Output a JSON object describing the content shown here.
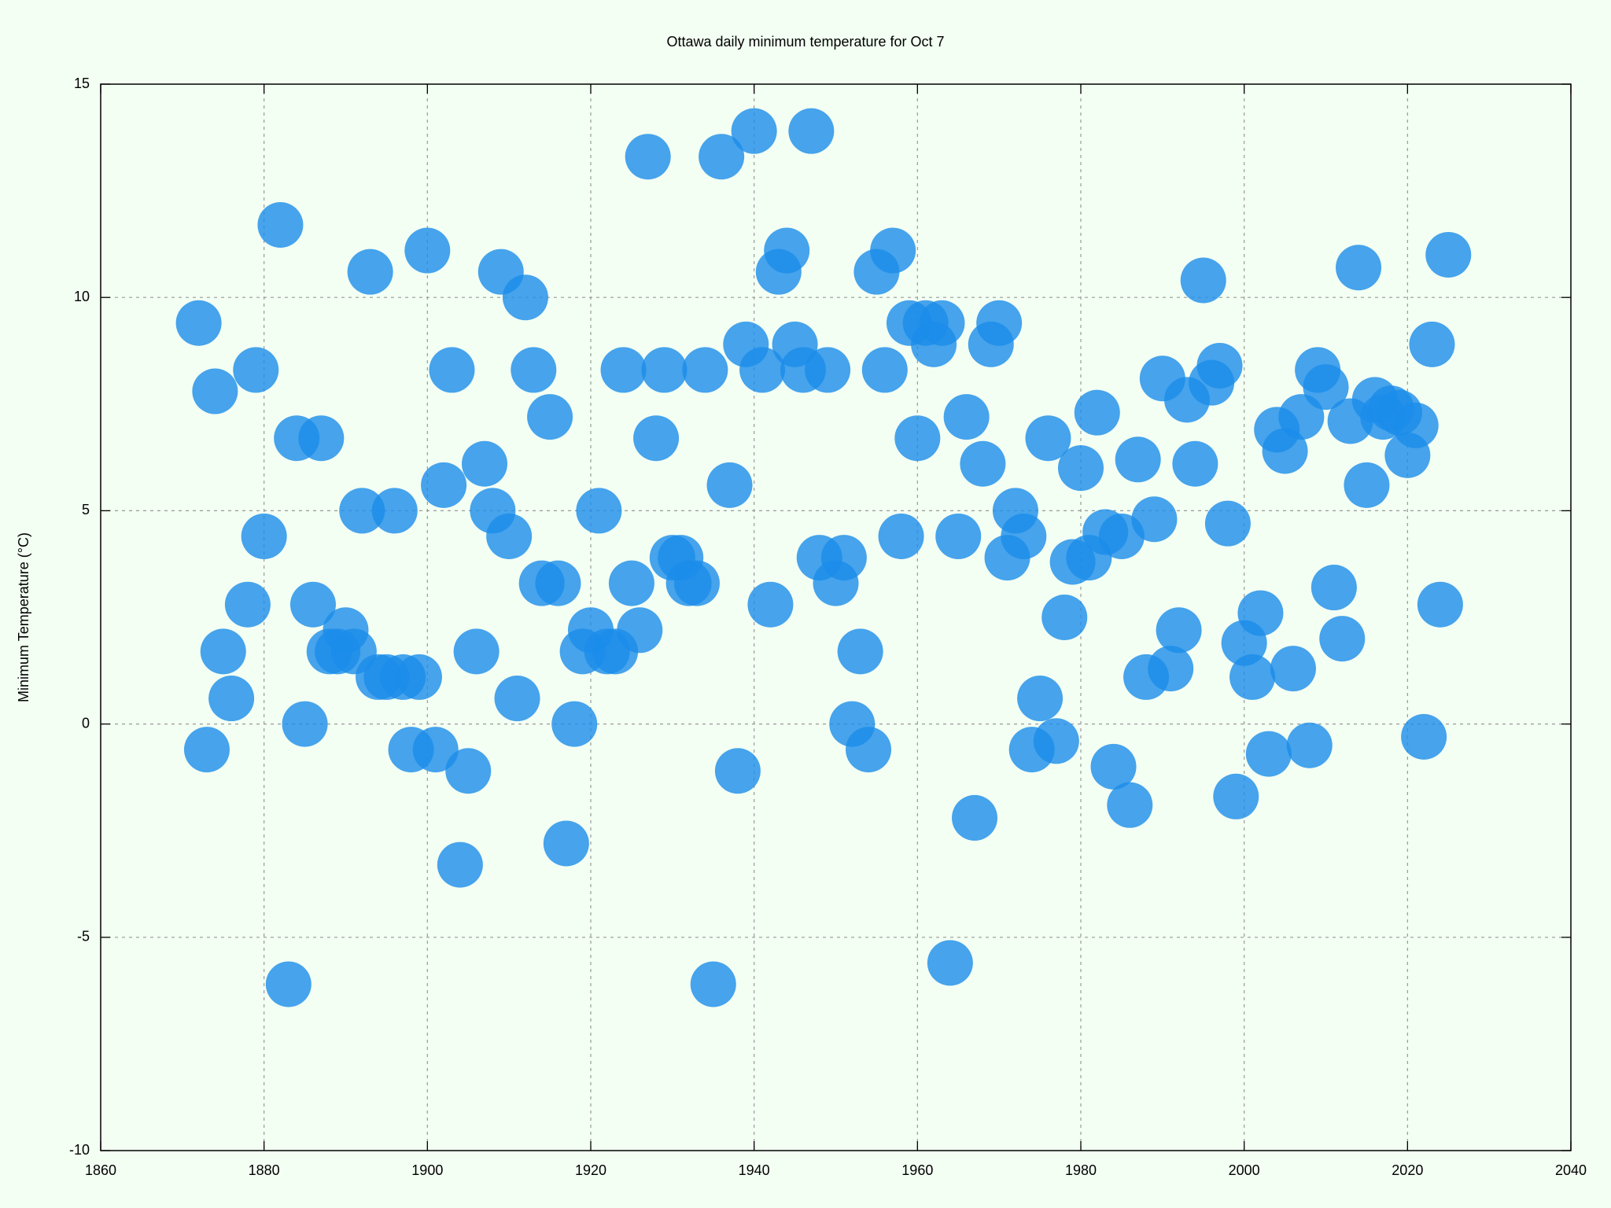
{
  "chart_data": {
    "type": "scatter",
    "title": "Ottawa daily minimum temperature for Oct 7",
    "y_label": "Minimum Temperature (°C)",
    "x": [
      1872,
      1873,
      1874,
      1875,
      1876,
      1878,
      1879,
      1880,
      1882,
      1883,
      1884,
      1885,
      1886,
      1887,
      1888,
      1889,
      1890,
      1891,
      1892,
      1893,
      1894,
      1895,
      1896,
      1897,
      1898,
      1899,
      1900,
      1901,
      1902,
      1903,
      1904,
      1905,
      1906,
      1907,
      1908,
      1909,
      1910,
      1911,
      1912,
      1913,
      1914,
      1915,
      1916,
      1917,
      1918,
      1919,
      1920,
      1921,
      1922,
      1923,
      1924,
      1925,
      1926,
      1927,
      1928,
      1929,
      1930,
      1931,
      1932,
      1933,
      1934,
      1935,
      1936,
      1937,
      1938,
      1939,
      1940,
      1941,
      1942,
      1943,
      1944,
      1945,
      1946,
      1947,
      1948,
      1949,
      1950,
      1951,
      1952,
      1953,
      1954,
      1955,
      1956,
      1957,
      1958,
      1959,
      1960,
      1961,
      1962,
      1963,
      1964,
      1965,
      1966,
      1967,
      1968,
      1969,
      1970,
      1971,
      1972,
      1973,
      1974,
      1975,
      1976,
      1977,
      1978,
      1979,
      1980,
      1981,
      1982,
      1983,
      1984,
      1985,
      1986,
      1987,
      1988,
      1989,
      1990,
      1991,
      1992,
      1993,
      1994,
      1995,
      1996,
      1997,
      1998,
      1999,
      2000,
      2001,
      2002,
      2003,
      2004,
      2005,
      2006,
      2007,
      2008,
      2009,
      2010,
      2011,
      2012,
      2013,
      2014,
      2015,
      2016,
      2017,
      2018,
      2019,
      2020,
      2021,
      2022,
      2023,
      2024,
      2025
    ],
    "values": [
      9.4,
      -0.6,
      7.8,
      1.7,
      0.6,
      2.8,
      8.3,
      4.4,
      11.7,
      -6.1,
      6.7,
      0.0,
      2.8,
      6.7,
      1.7,
      1.7,
      2.2,
      1.7,
      5.0,
      10.6,
      1.1,
      1.1,
      5.0,
      1.1,
      -0.6,
      1.1,
      11.1,
      -0.6,
      5.6,
      8.3,
      -3.3,
      -1.1,
      1.7,
      6.1,
      5.0,
      10.6,
      4.4,
      0.6,
      10.0,
      8.3,
      3.3,
      7.2,
      3.3,
      -2.8,
      0.0,
      1.7,
      2.2,
      5.0,
      1.7,
      1.7,
      8.3,
      3.3,
      2.2,
      13.3,
      6.7,
      8.3,
      3.9,
      3.9,
      3.3,
      3.3,
      8.3,
      -6.1,
      13.3,
      5.6,
      -1.1,
      8.9,
      13.9,
      8.3,
      2.8,
      10.6,
      11.1,
      8.9,
      8.3,
      13.9,
      3.9,
      8.3,
      3.3,
      3.9,
      0.0,
      1.7,
      -0.6,
      10.6,
      8.3,
      11.1,
      4.4,
      9.4,
      6.7,
      9.4,
      8.9,
      9.4,
      -5.6,
      4.4,
      7.2,
      -2.2,
      6.1,
      8.9,
      9.4,
      3.9,
      5.0,
      4.4,
      -0.6,
      0.6,
      6.7,
      -0.4,
      2.5,
      3.8,
      6.0,
      3.9,
      7.3,
      4.5,
      -1.0,
      4.4,
      -1.9,
      6.2,
      1.1,
      4.8,
      8.1,
      1.3,
      2.2,
      7.6,
      6.1,
      10.4,
      8.0,
      8.4,
      4.7,
      -1.7,
      1.9,
      1.1,
      2.6,
      -0.7,
      6.9,
      6.4,
      1.3,
      7.2,
      -0.5,
      8.3,
      7.9,
      3.2,
      2.0,
      7.1,
      10.7,
      5.6,
      7.6,
      7.2,
      7.4,
      7.3,
      6.3,
      7.0,
      -0.3,
      8.9,
      2.8,
      11.0
    ],
    "color": "#1a8cea",
    "xlim": [
      1860,
      2040
    ],
    "xticks": [
      1860,
      1880,
      1900,
      1920,
      1940,
      1960,
      1980,
      2000,
      2020,
      2040
    ],
    "ylim": [
      -10,
      15
    ],
    "yticks": [
      -10,
      -5,
      0,
      5,
      10,
      15
    ],
    "grid": true
  }
}
